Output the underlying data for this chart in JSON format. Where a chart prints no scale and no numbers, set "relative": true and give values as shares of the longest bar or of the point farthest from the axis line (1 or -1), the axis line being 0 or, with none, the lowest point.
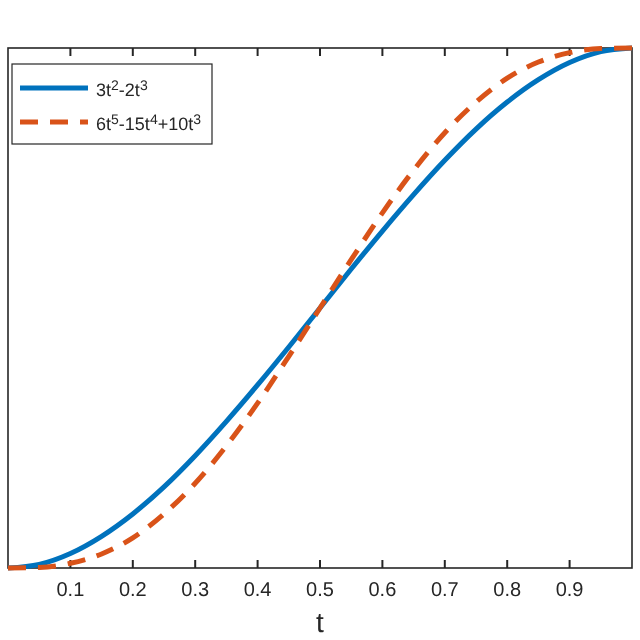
{
  "chart_data": {
    "type": "line",
    "relative": true,
    "xlabel": "t",
    "xlim": [
      0,
      1
    ],
    "xticks": [
      0.1,
      0.2,
      0.3,
      0.4,
      0.5,
      0.6,
      0.7,
      0.8,
      0.9
    ],
    "legend": "top left",
    "grid": false,
    "series": [
      {
        "name": "3t$^{2}$-2t$^{3}$",
        "color": "#0072bd",
        "line_style": "solid",
        "x": [
          0,
          0.05,
          0.1,
          0.15,
          0.2,
          0.25,
          0.3,
          0.35,
          0.4,
          0.45,
          0.5,
          0.55,
          0.6,
          0.65,
          0.7,
          0.75,
          0.8,
          0.85,
          0.9,
          0.95,
          1
        ],
        "values": [
          0,
          0.007,
          0.028,
          0.061,
          0.104,
          0.156,
          0.216,
          0.282,
          0.352,
          0.425,
          0.5,
          0.575,
          0.648,
          0.718,
          0.784,
          0.844,
          0.896,
          0.939,
          0.972,
          0.993,
          1
        ]
      },
      {
        "name": "6t$^{5}$-15t$^{4}$+10t$^{3}$",
        "color": "#d95319",
        "line_style": "dashed",
        "x": [
          0,
          0.05,
          0.1,
          0.15,
          0.2,
          0.25,
          0.3,
          0.35,
          0.4,
          0.45,
          0.5,
          0.55,
          0.6,
          0.65,
          0.7,
          0.75,
          0.8,
          0.85,
          0.9,
          0.95,
          1
        ],
        "values": [
          0,
          0.001,
          0.009,
          0.027,
          0.058,
          0.104,
          0.163,
          0.235,
          0.317,
          0.407,
          0.5,
          0.593,
          0.683,
          0.765,
          0.837,
          0.896,
          0.942,
          0.973,
          0.991,
          0.999,
          1
        ]
      }
    ]
  }
}
